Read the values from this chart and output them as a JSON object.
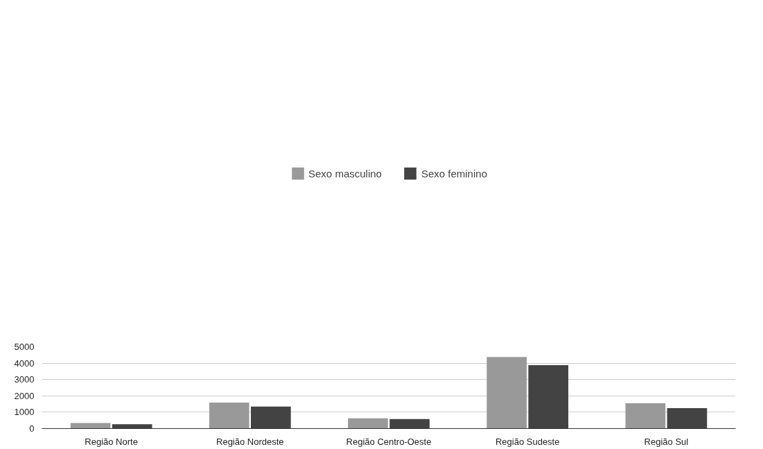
{
  "chart_data": {
    "type": "bar",
    "categories": [
      "Região Norte",
      "Região Nordeste",
      "Região Centro-Oeste",
      "Região Sudeste",
      "Região Sul"
    ],
    "series": [
      {
        "name": "Sexo masculino",
        "color": "#999999",
        "values": [
          340,
          1590,
          620,
          4380,
          1550
        ]
      },
      {
        "name": "Sexo feminino",
        "color": "#434343",
        "values": [
          260,
          1350,
          580,
          3880,
          1250
        ]
      }
    ],
    "ylim": [
      0,
      5000
    ],
    "yticks": [
      0,
      1000,
      2000,
      3000,
      4000,
      5000
    ],
    "grid": "y",
    "legend": "top"
  }
}
